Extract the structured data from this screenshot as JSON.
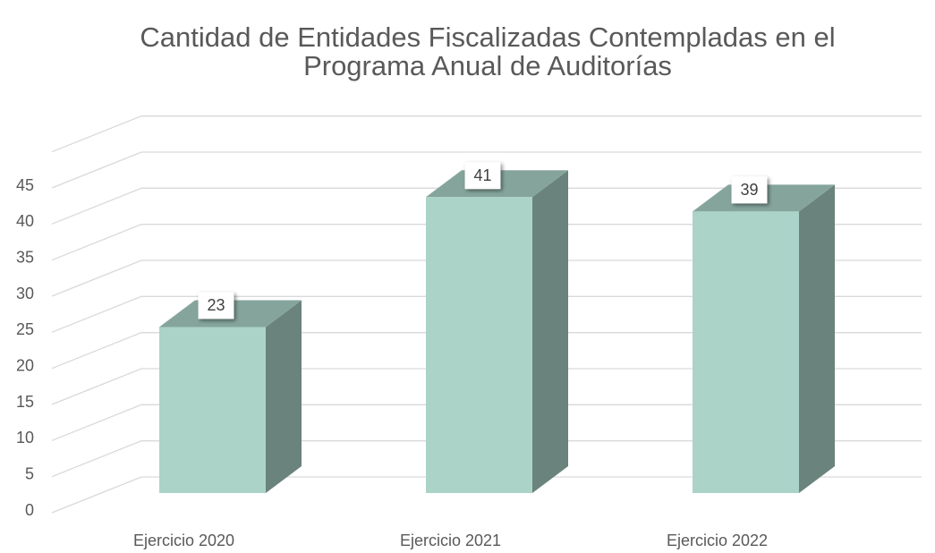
{
  "chart_data": {
    "type": "bar3d",
    "title": [
      "Cantidad de Entidades Fiscalizadas Contempladas en el",
      "Programa Anual de Auditorías"
    ],
    "categories": [
      "Ejercicio 2020",
      "Ejercicio 2021",
      "Ejercicio 2022"
    ],
    "values": [
      23,
      41,
      39
    ],
    "color": "#abd3c8",
    "ylim": [
      0,
      50
    ],
    "yticks": [
      0,
      5,
      10,
      15,
      20,
      25,
      30,
      35,
      40,
      45
    ],
    "grid": true
  }
}
